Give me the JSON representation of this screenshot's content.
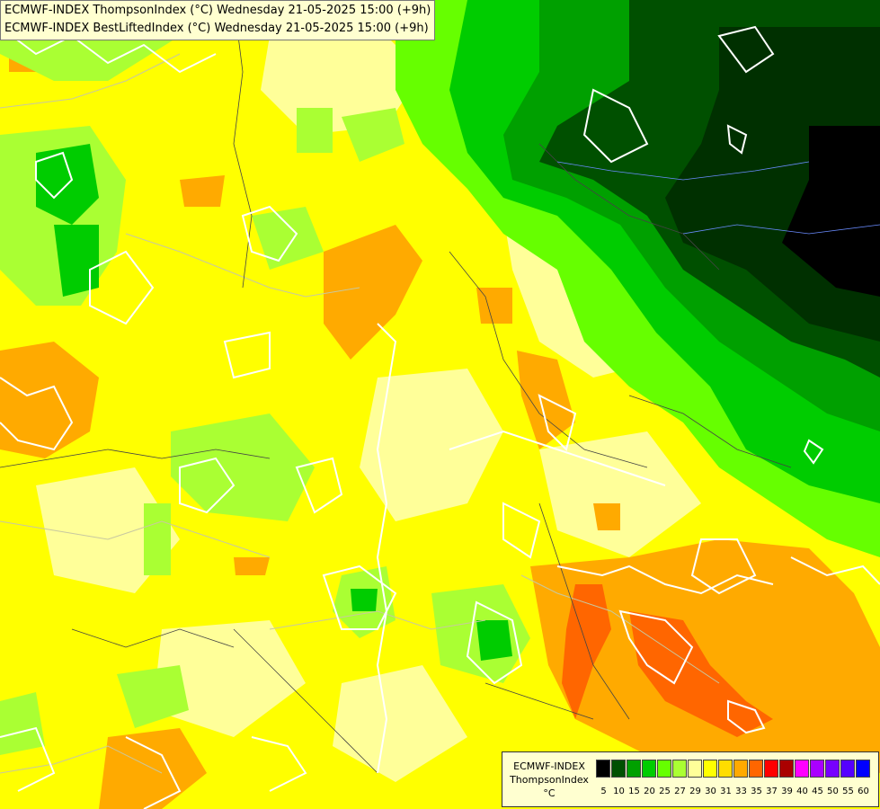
{
  "titles": {
    "line1": "ECMWF-INDEX ThompsonIndex (°C) Wednesday 21-05-2025 15:00 (+9h)",
    "line2": "ECMWF-INDEX BestLiftedIndex (°C) Wednesday 21-05-2025 15:00 (+9h)"
  },
  "legend": {
    "line1": "ECMWF-INDEX",
    "line2": "ThompsonIndex",
    "unit": "°C",
    "colors": [
      "#000000",
      "#000000",
      "#000000",
      "#000000",
      "#005000",
      "#00a000",
      "#00cc00",
      "#66ff00",
      "#aaff33",
      "#ffff99",
      "#ffff00",
      "#ffdd00",
      "#ffaa00",
      "#ff6600",
      "#ff0000",
      "#aa0000",
      "#ff00ff",
      "#aa00ff",
      "#7700ff",
      "#5500ff",
      "#0000ff"
    ],
    "labels": [
      "5",
      "10",
      "15",
      "20",
      "25",
      "27",
      "29",
      "30",
      "31",
      "33",
      "35",
      "37",
      "39",
      "40",
      "45",
      "50",
      "55",
      "60"
    ]
  }
}
